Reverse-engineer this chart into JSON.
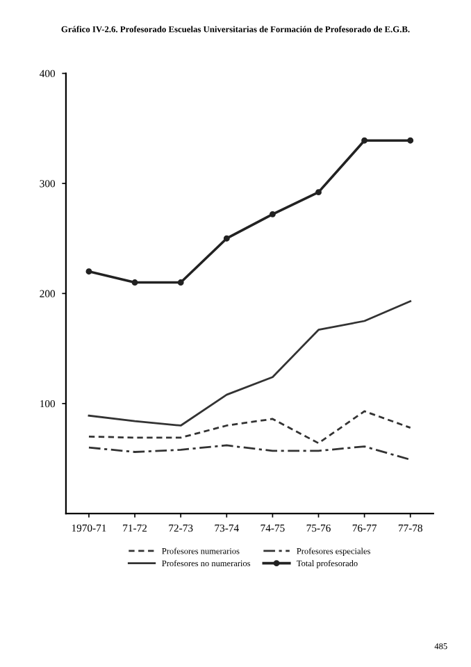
{
  "chart_data": {
    "type": "line",
    "title": "Gráfico IV-2.6. Profesorado Escuelas Universitarias de Formación de Profesorado de E.G.B.",
    "categories": [
      "1970-71",
      "71-72",
      "72-73",
      "73-74",
      "74-75",
      "75-76",
      "76-77",
      "77-78"
    ],
    "series": [
      {
        "name": "Profesores numerarios",
        "color": "#333333",
        "line_style": "dashed",
        "values": [
          70,
          69,
          69,
          80,
          86,
          64,
          93,
          78
        ]
      },
      {
        "name": "Profesores no numerarios",
        "color": "#333333",
        "line_style": "solid",
        "values": [
          89,
          84,
          80,
          108,
          124,
          167,
          175,
          193
        ]
      },
      {
        "name": "Profesores especiales",
        "color": "#333333",
        "line_style": "dashdot",
        "values": [
          60,
          56,
          58,
          62,
          57,
          57,
          61,
          49
        ]
      },
      {
        "name": "Total profesorado",
        "color": "#222222",
        "line_style": "solid",
        "marker": "circle",
        "values": [
          220,
          210,
          210,
          250,
          272,
          292,
          339,
          339
        ]
      }
    ],
    "ylim": [
      0,
      400
    ],
    "yticks": [
      100,
      200,
      300,
      400
    ],
    "grid": false,
    "legend": "bottom",
    "annotations": [
      "485"
    ]
  }
}
